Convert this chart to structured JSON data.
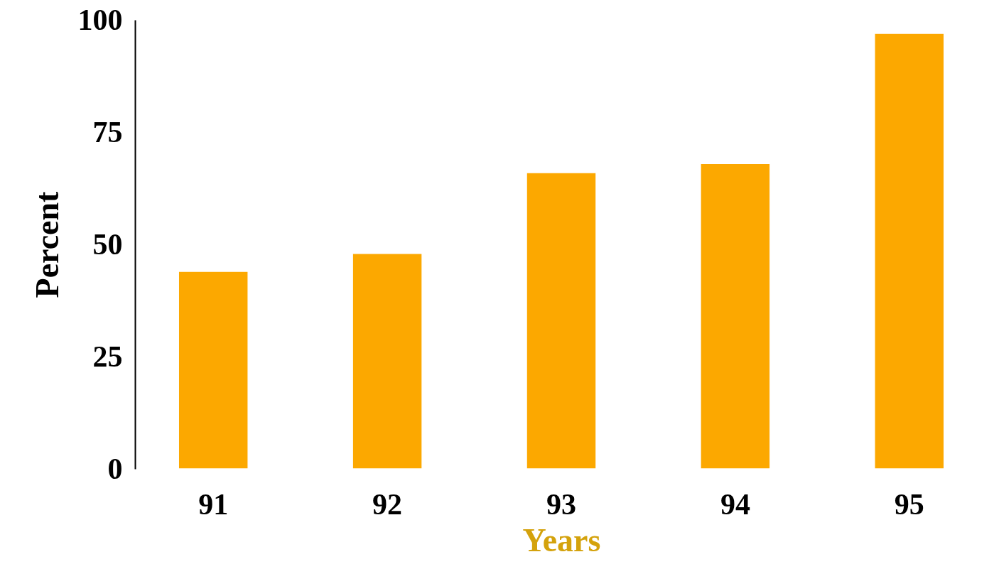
{
  "chart_data": {
    "type": "bar",
    "xlabel": "Years",
    "ylabel": "Percent",
    "categories": [
      "91",
      "92",
      "93",
      "94",
      "95"
    ],
    "values": [
      44,
      48,
      66,
      68,
      97
    ],
    "color": "#fca800",
    "ylim": [
      0,
      100
    ],
    "yticks": [
      0,
      25,
      50,
      75,
      100
    ],
    "grid": false
  }
}
